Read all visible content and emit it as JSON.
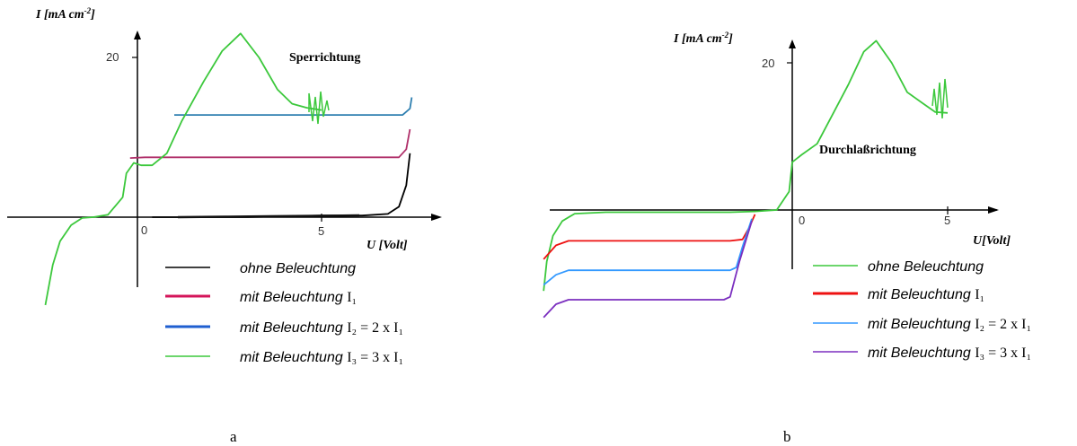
{
  "chart_data": [
    {
      "type": "line",
      "panel": "a",
      "ylabel": "I [mA cm",
      "ylabel_sup": "-2",
      "ylabel_end": "]",
      "xlabel": "U [Volt]",
      "x_ticks": [
        "0",
        "5"
      ],
      "y_ticks": [
        "20"
      ],
      "annotation": "Sperrichtung",
      "caption": "a",
      "legend": [
        {
          "text": "ohne Beleuchtung",
          "suffix": "",
          "color": "#000000"
        },
        {
          "text": "mit Beleuchtung",
          "suffix": "I₁",
          "color": "#d4145a"
        },
        {
          "text": "mit Beleuchtung",
          "suffix": "I₂ = 2 x I₁",
          "color": "#1f5fd0"
        },
        {
          "text": "mit Beleuchtung",
          "suffix": "I₃ = 3 x I₁",
          "color": "#3cc83c"
        }
      ],
      "series": [
        {
          "color": "#000000",
          "x": [
            0.4,
            3,
            5,
            6.1,
            6.8,
            7.1,
            7.3,
            7.4
          ],
          "y": [
            0,
            0,
            0.2,
            0.2,
            0.4,
            1.3,
            4,
            8
          ]
        },
        {
          "color": "#b0306a",
          "x": [
            -0.2,
            0.2,
            1,
            3,
            5,
            7.1,
            7.3,
            7.4
          ],
          "y": [
            7.4,
            7.5,
            7.5,
            7.5,
            7.5,
            7.5,
            8.5,
            11
          ]
        },
        {
          "color": "#2e7fb0",
          "x": [
            1,
            3,
            5,
            7.2,
            7.4,
            7.45
          ],
          "y": [
            12.8,
            12.8,
            12.8,
            12.8,
            13.6,
            15
          ]
        },
        {
          "color": "#3cc83c",
          "x": [
            -2.5,
            -2.3,
            -2.1,
            -1.8,
            -1.5,
            -1.2,
            -0.8,
            -0.4,
            -0.3,
            -0.1,
            0.1,
            0.4,
            0.8,
            1.2,
            1.8,
            2.3,
            2.8,
            3.3,
            3.8,
            4.2,
            4.6,
            5.0
          ],
          "y": [
            -11,
            -6,
            -3,
            -1,
            -0.1,
            0,
            0.3,
            2.5,
            5.5,
            6.8,
            6.5,
            6.5,
            8,
            12,
            17,
            20.8,
            23,
            20,
            16,
            14.2,
            13.7,
            13.4
          ]
        }
      ]
    },
    {
      "type": "line",
      "panel": "b",
      "ylabel": "I [mA cm",
      "ylabel_sup": "-2",
      "ylabel_end": "]",
      "xlabel": "U[Volt]",
      "x_ticks": [
        "0",
        "5"
      ],
      "y_ticks": [
        "20"
      ],
      "annotation": "Durchlaßrichtung",
      "caption": "b",
      "legend": [
        {
          "text": "ohne Beleuchtung",
          "suffix": "",
          "color": "#3cc83c"
        },
        {
          "text": "mit Beleuchtung",
          "suffix": "I₁",
          "color": "#ee1111"
        },
        {
          "text": "mit Beleuchtung",
          "suffix": "I₂ = 2 x I₁",
          "color": "#3399ff"
        },
        {
          "text": "mit Beleuchtung",
          "suffix": "I₃ = 3 x I₁",
          "color": "#7b2fbf"
        }
      ],
      "series": [
        {
          "color": "#3cc83c",
          "x": [
            -8,
            -7.9,
            -7.7,
            -7.4,
            -7,
            -6,
            -4,
            -2,
            -1.2,
            -0.5,
            -0.1,
            0,
            0.3,
            0.8,
            1.3,
            1.8,
            2.3,
            2.7,
            3.2,
            3.7,
            4.2,
            4.6,
            5.0
          ],
          "y": [
            -11,
            -7,
            -3.5,
            -1.5,
            -0.5,
            -0.3,
            -0.3,
            -0.3,
            -0.2,
            0,
            2.5,
            6.5,
            7.5,
            9,
            13,
            17,
            21.5,
            23,
            20,
            16,
            14.5,
            13.3,
            13.2
          ]
        },
        {
          "color": "#ee1111",
          "x": [
            -8,
            -7.6,
            -7.2,
            -6,
            -4,
            -2,
            -1.6,
            -1.4,
            -1.2
          ],
          "y": [
            -6.7,
            -4.8,
            -4.2,
            -4.2,
            -4.2,
            -4.2,
            -4.0,
            -2.5,
            -0.6
          ]
        },
        {
          "color": "#3399ff",
          "x": [
            -8,
            -7.6,
            -7.2,
            -6,
            -4,
            -2,
            -1.8,
            -1.6,
            -1.3
          ],
          "y": [
            -10.2,
            -8.8,
            -8.2,
            -8.2,
            -8.2,
            -8.2,
            -7.8,
            -5,
            -1.2
          ]
        },
        {
          "color": "#7b2fbf",
          "x": [
            -8,
            -7.6,
            -7.2,
            -6,
            -4,
            -2.2,
            -2.0,
            -1.7,
            -1.3
          ],
          "y": [
            -14.6,
            -12.8,
            -12.2,
            -12.2,
            -12.2,
            -12.2,
            -11.8,
            -7,
            -1.5
          ]
        }
      ]
    }
  ]
}
